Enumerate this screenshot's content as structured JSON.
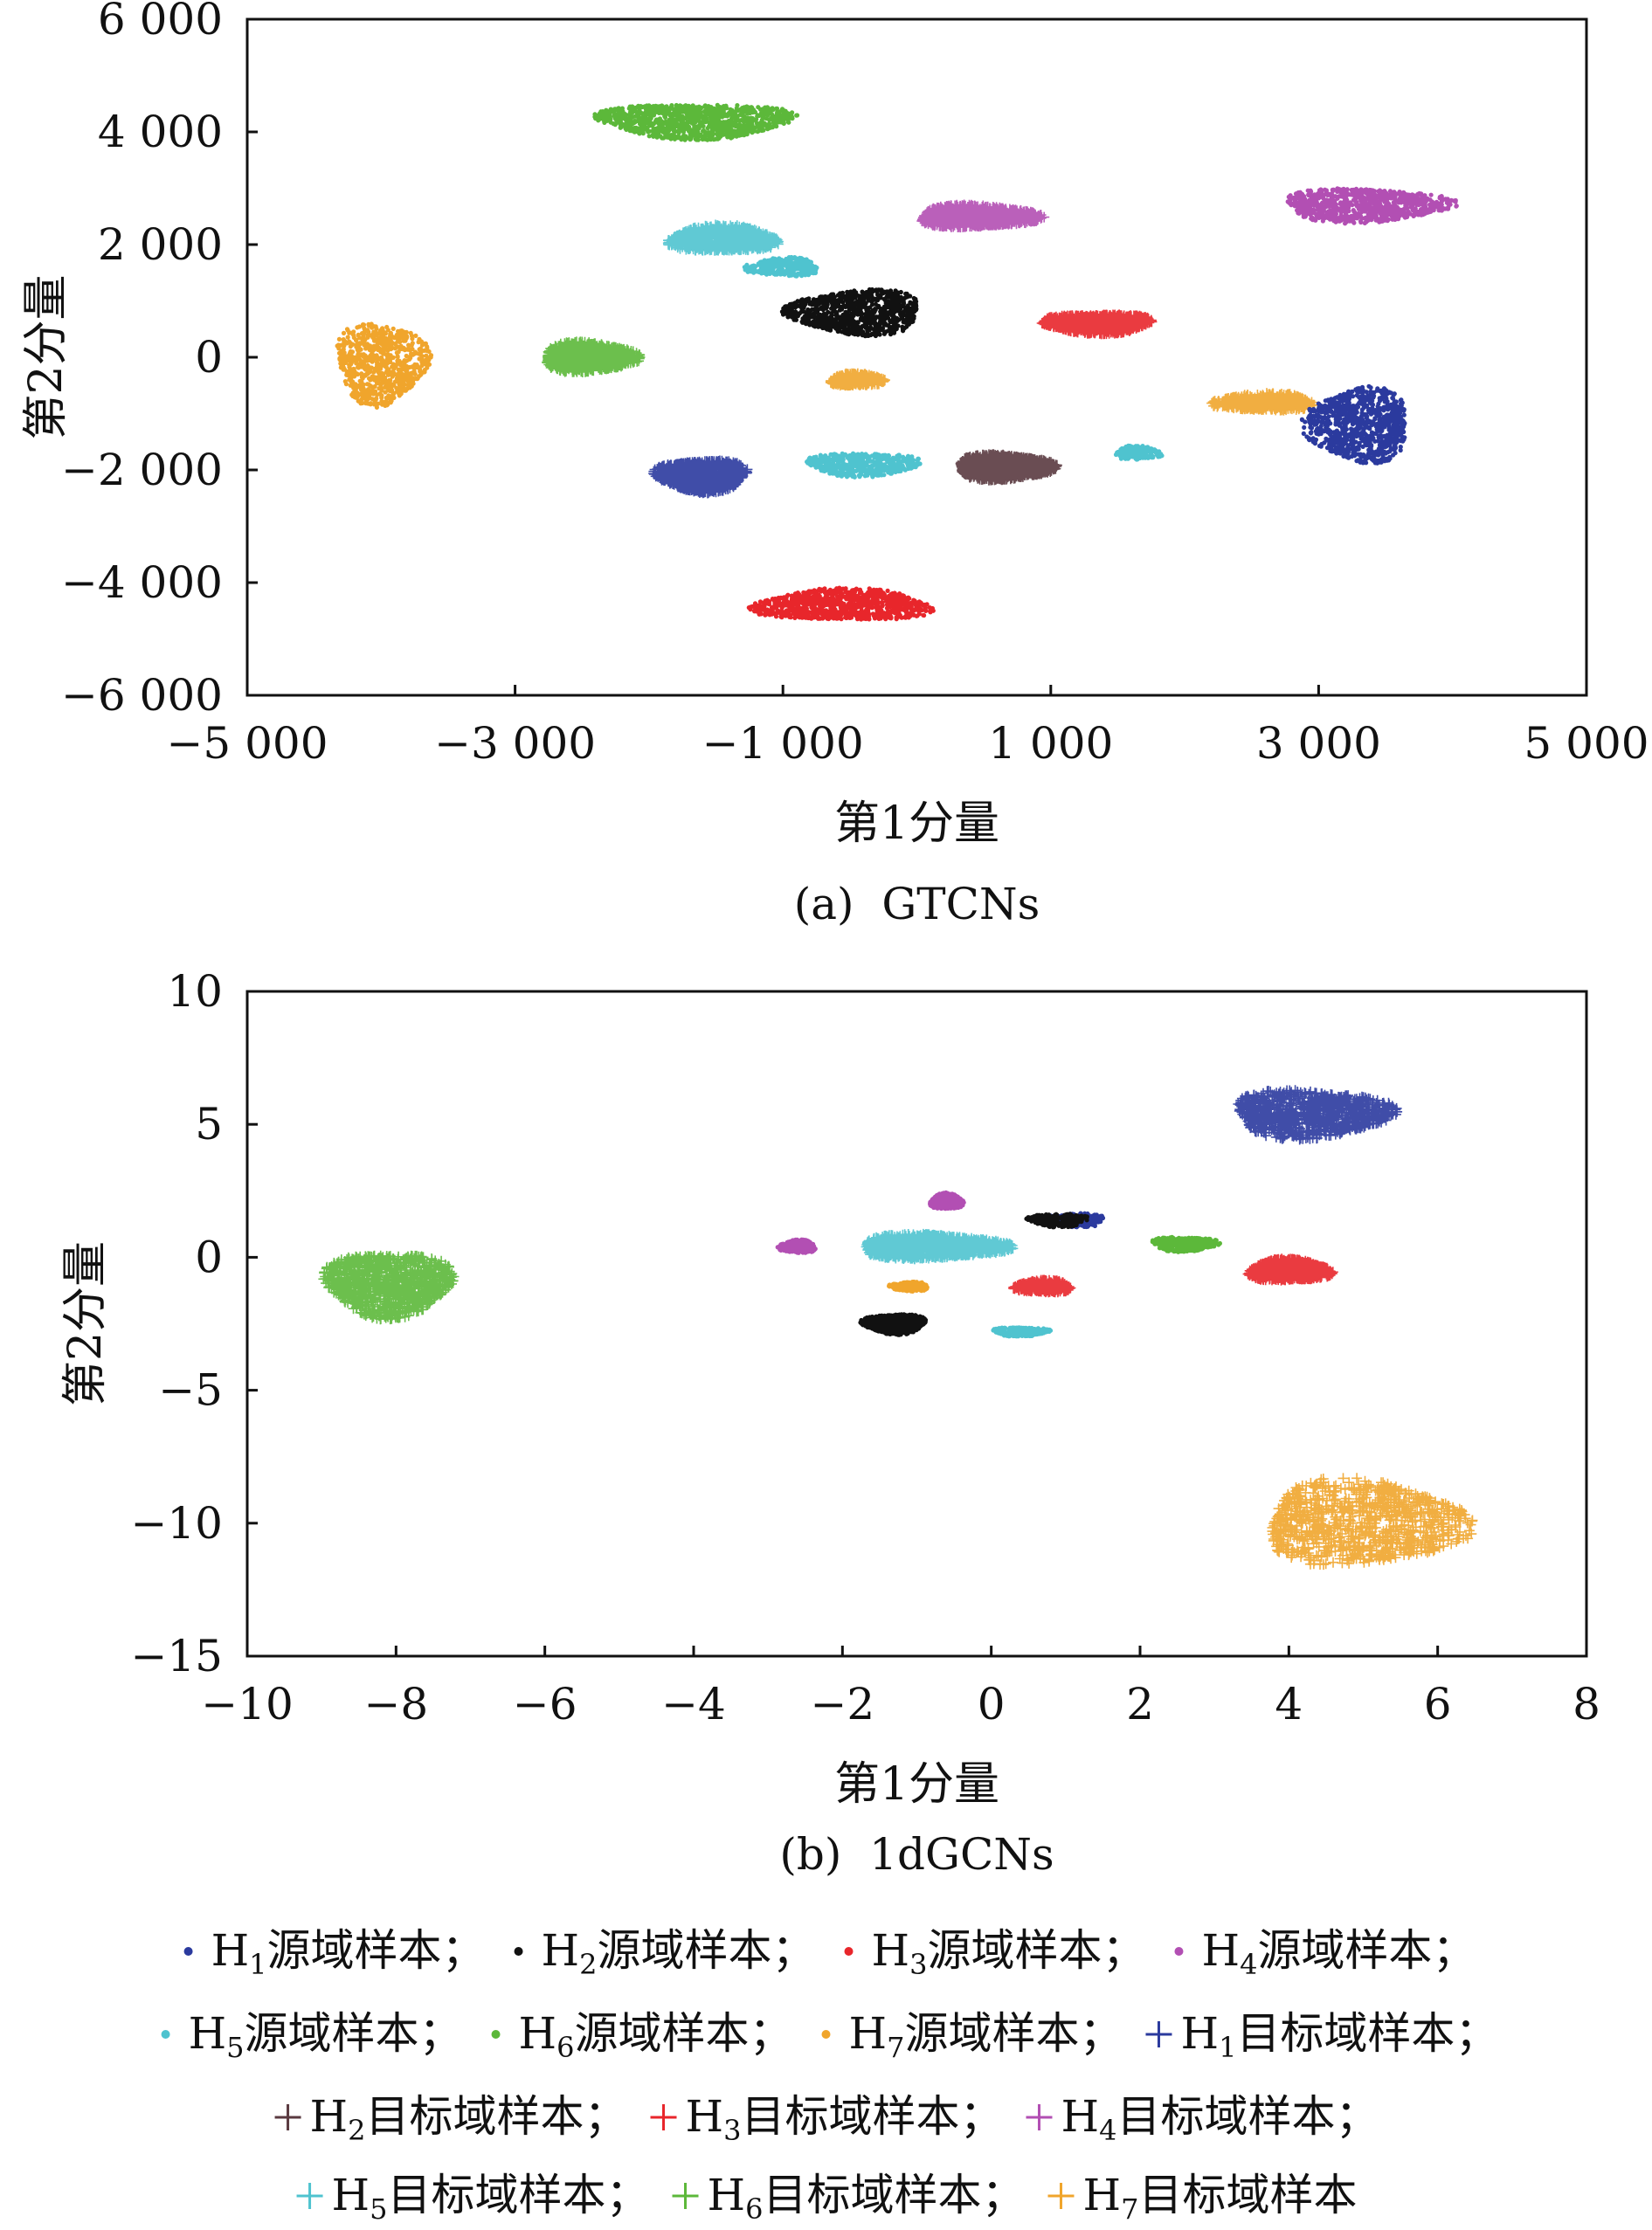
{
  "legend": {
    "sep": "；",
    "items": [
      {
        "key": "H1s",
        "marker": "dot",
        "color": "#2b3a9e",
        "prefix": "H",
        "sub": "1",
        "text": "源域样本"
      },
      {
        "key": "H2s",
        "marker": "dot",
        "color": "#111111",
        "prefix": "H",
        "sub": "2",
        "text": "源域样本"
      },
      {
        "key": "H3s",
        "marker": "dot",
        "color": "#e8262b",
        "prefix": "H",
        "sub": "3",
        "text": "源域样本"
      },
      {
        "key": "H4s",
        "marker": "dot",
        "color": "#b24fb3",
        "prefix": "H",
        "sub": "4",
        "text": "源域样本"
      },
      {
        "key": "H5s",
        "marker": "dot",
        "color": "#4fc3cf",
        "prefix": "H",
        "sub": "5",
        "text": "源域样本"
      },
      {
        "key": "H6s",
        "marker": "dot",
        "color": "#5cb83a",
        "prefix": "H",
        "sub": "6",
        "text": "源域样本"
      },
      {
        "key": "H7s",
        "marker": "dot",
        "color": "#f0a52c",
        "prefix": "H",
        "sub": "7",
        "text": "源域样本"
      },
      {
        "key": "H1t",
        "marker": "plus",
        "color": "#2b3a9e",
        "prefix": "H",
        "sub": "1",
        "text": "目标域样本"
      },
      {
        "key": "H2t",
        "marker": "plus",
        "color": "#5a3a40",
        "prefix": "H",
        "sub": "2",
        "text": "目标域样本"
      },
      {
        "key": "H3t",
        "marker": "plus",
        "color": "#e8262b",
        "prefix": "H",
        "sub": "3",
        "text": "目标域样本"
      },
      {
        "key": "H4t",
        "marker": "plus",
        "color": "#b24fb3",
        "prefix": "H",
        "sub": "4",
        "text": "目标域样本"
      },
      {
        "key": "H5t",
        "marker": "plus",
        "color": "#4fc3cf",
        "prefix": "H",
        "sub": "5",
        "text": "目标域样本"
      },
      {
        "key": "H6t",
        "marker": "plus",
        "color": "#5cb83a",
        "prefix": "H",
        "sub": "6",
        "text": "目标域样本"
      },
      {
        "key": "H7t",
        "marker": "plus",
        "color": "#f0a52c",
        "prefix": "H",
        "sub": "7",
        "text": "目标域样本"
      }
    ]
  },
  "chart_data": [
    {
      "type": "scatter",
      "caption": "(a)  GTCNs",
      "xlabel": "第1分量",
      "ylabel": "第2分量",
      "xlim": [
        -5000,
        5000
      ],
      "ylim": [
        -6000,
        6000
      ],
      "xticks": [
        -5000,
        -3000,
        -1000,
        1000,
        3000,
        5000
      ],
      "yticks": [
        -6000,
        -4000,
        -2000,
        0,
        2000,
        4000,
        6000
      ],
      "xtick_labels": [
        "−5 000",
        "−3 000",
        "−1 000",
        "1 000",
        "3 000",
        "5 000"
      ],
      "ytick_labels": [
        "−6 000",
        "−4 000",
        "−2 000",
        "0",
        "2 000",
        "4 000",
        "6 000"
      ],
      "clusters": [
        {
          "series": "H6s",
          "center": [
            -1650,
            4200
          ],
          "spread": [
            1450,
            620
          ],
          "count": 1100
        },
        {
          "series": "H4s",
          "center": [
            3350,
            2700
          ],
          "spread": [
            1250,
            600
          ],
          "count": 900
        },
        {
          "series": "H4t",
          "center": [
            450,
            2500
          ],
          "spread": [
            900,
            380
          ],
          "count": 1100
        },
        {
          "series": "H5t",
          "center": [
            -1450,
            2100
          ],
          "spread": [
            800,
            460
          ],
          "count": 900
        },
        {
          "series": "H5s",
          "center": [
            -1000,
            1600
          ],
          "spread": [
            550,
            330
          ],
          "count": 350
        },
        {
          "series": "H2s",
          "center": [
            -450,
            800
          ],
          "spread": [
            1000,
            800
          ],
          "count": 900
        },
        {
          "series": "H3t",
          "center": [
            1350,
            600
          ],
          "spread": [
            800,
            340
          ],
          "count": 900
        },
        {
          "series": "H7s",
          "center": [
            -4000,
            -100
          ],
          "spread": [
            680,
            1450
          ],
          "count": 800
        },
        {
          "series": "H6t",
          "center": [
            -2450,
            0
          ],
          "spread": [
            700,
            520
          ],
          "count": 900
        },
        {
          "series": "H7t",
          "center": [
            -450,
            -400
          ],
          "spread": [
            400,
            220
          ],
          "count": 350
        },
        {
          "series": "H7t",
          "center": [
            2600,
            -800
          ],
          "spread": [
            750,
            300
          ],
          "count": 500
        },
        {
          "series": "H1s",
          "center": [
            3300,
            -1200
          ],
          "spread": [
            780,
            1320
          ],
          "count": 900
        },
        {
          "series": "H1t",
          "center": [
            -1600,
            -2100
          ],
          "spread": [
            680,
            560
          ],
          "count": 1000
        },
        {
          "series": "H5s",
          "center": [
            -400,
            -1900
          ],
          "spread": [
            850,
            420
          ],
          "count": 500
        },
        {
          "series": "H2t",
          "center": [
            650,
            -1950
          ],
          "spread": [
            720,
            440
          ],
          "count": 1200
        },
        {
          "series": "H5s",
          "center": [
            1650,
            -1700
          ],
          "spread": [
            350,
            250
          ],
          "count": 150
        },
        {
          "series": "H3s",
          "center": [
            -550,
            -4400
          ],
          "spread": [
            1330,
            560
          ],
          "count": 1000
        }
      ]
    },
    {
      "type": "scatter",
      "caption": "(b)  1dGCNs",
      "xlabel": "第1分量",
      "ylabel": "第2分量",
      "xlim": [
        -10,
        8
      ],
      "ylim": [
        -15,
        10
      ],
      "xticks": [
        -10,
        -8,
        -6,
        -4,
        -2,
        0,
        2,
        4,
        6,
        8
      ],
      "yticks": [
        -15,
        -10,
        -5,
        0,
        5,
        10
      ],
      "xtick_labels": [
        "−10",
        "−8",
        "−6",
        "−4",
        "−2",
        "0",
        "2",
        "4",
        "6",
        "8"
      ],
      "ytick_labels": [
        "−15",
        "−10",
        "−5",
        "0",
        "5",
        "10"
      ],
      "clusters": [
        {
          "series": "H6t",
          "center": [
            -8.1,
            -1.0
          ],
          "spread": [
            1.7,
            2.4
          ],
          "count": 1000
        },
        {
          "series": "H1t",
          "center": [
            4.3,
            5.4
          ],
          "spread": [
            2.1,
            1.8
          ],
          "count": 900
        },
        {
          "series": "H7t",
          "center": [
            5.0,
            -10.0
          ],
          "spread": [
            2.7,
            3.2
          ],
          "count": 900
        },
        {
          "series": "H4s",
          "center": [
            -0.6,
            2.1
          ],
          "spread": [
            0.45,
            0.6
          ],
          "count": 500
        },
        {
          "series": "H4s",
          "center": [
            -2.6,
            0.4
          ],
          "spread": [
            0.5,
            0.5
          ],
          "count": 300
        },
        {
          "series": "H1s",
          "center": [
            1.1,
            1.4
          ],
          "spread": [
            0.9,
            0.5
          ],
          "count": 300
        },
        {
          "series": "H2s",
          "center": [
            0.9,
            1.4
          ],
          "spread": [
            0.8,
            0.5
          ],
          "count": 200
        },
        {
          "series": "H6s",
          "center": [
            2.6,
            0.5
          ],
          "spread": [
            0.9,
            0.55
          ],
          "count": 350
        },
        {
          "series": "H5t",
          "center": [
            -0.8,
            0.4
          ],
          "spread": [
            2.0,
            0.9
          ],
          "count": 1200
        },
        {
          "series": "H3t",
          "center": [
            4.0,
            -0.5
          ],
          "spread": [
            1.1,
            0.8
          ],
          "count": 800
        },
        {
          "series": "H3t",
          "center": [
            0.7,
            -1.1
          ],
          "spread": [
            0.75,
            0.45
          ],
          "count": 400
        },
        {
          "series": "H7s",
          "center": [
            -1.1,
            -1.1
          ],
          "spread": [
            0.55,
            0.35
          ],
          "count": 200
        },
        {
          "series": "H2s",
          "center": [
            -1.3,
            -2.5
          ],
          "spread": [
            0.85,
            0.75
          ],
          "count": 900
        },
        {
          "series": "H5s",
          "center": [
            0.4,
            -2.8
          ],
          "spread": [
            0.75,
            0.35
          ],
          "count": 300
        }
      ]
    }
  ]
}
